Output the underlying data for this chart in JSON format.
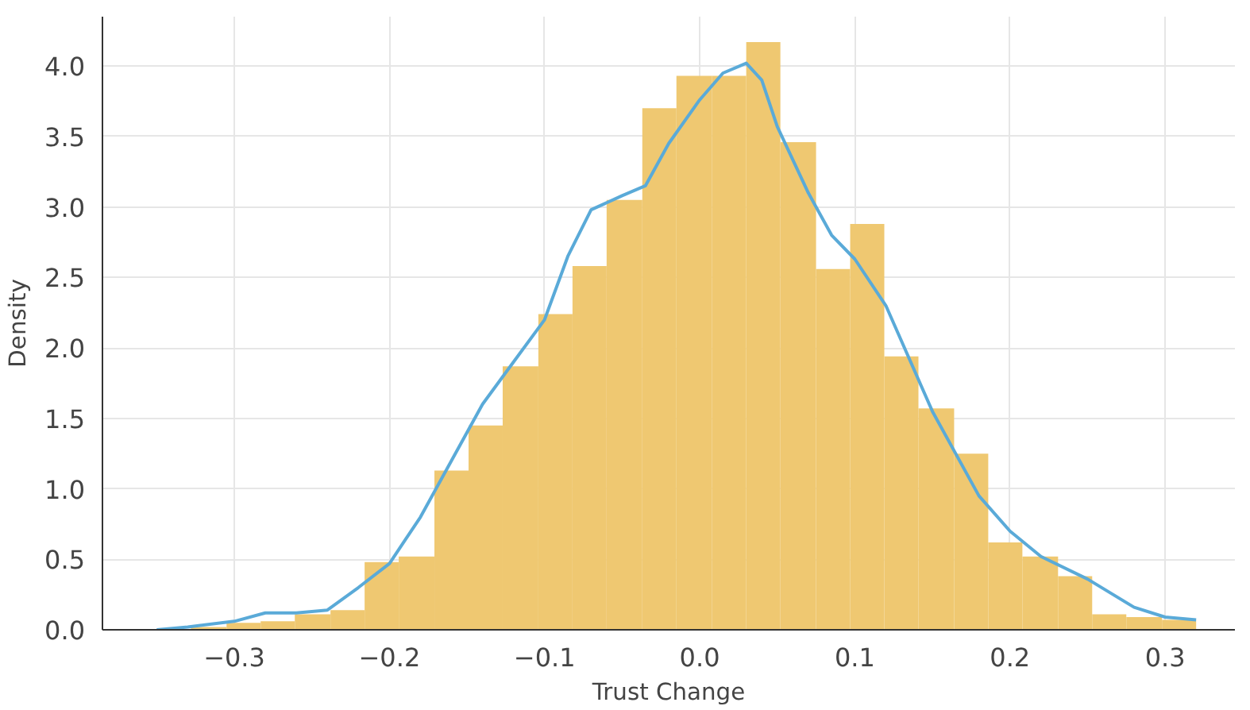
{
  "chart_data": {
    "type": "histogram",
    "xlabel": "Trust Change",
    "ylabel": "Density",
    "bins": [
      -0.328,
      -0.305,
      -0.283,
      -0.261,
      -0.238,
      -0.216,
      -0.194,
      -0.171,
      -0.149,
      -0.127,
      -0.104,
      -0.082,
      -0.06,
      -0.037,
      -0.015,
      0.008,
      0.03,
      0.052,
      0.075,
      0.097,
      0.119,
      0.141,
      0.164,
      0.186,
      0.208,
      0.231,
      0.253,
      0.275,
      0.298,
      0.32
    ],
    "values": [
      0.02,
      0.05,
      0.06,
      0.11,
      0.14,
      0.48,
      0.52,
      1.13,
      1.45,
      1.87,
      2.24,
      2.58,
      3.05,
      3.7,
      3.93,
      3.93,
      4.17,
      3.46,
      2.56,
      2.88,
      1.94,
      1.57,
      1.25,
      0.62,
      0.52,
      0.38,
      0.11,
      0.09,
      0.07
    ],
    "color": "#efc871",
    "series": [
      {
        "type": "line",
        "color": "#5aaad8",
        "x": [
          -0.35,
          -0.33,
          -0.3,
          -0.28,
          -0.26,
          -0.24,
          -0.22,
          -0.2,
          -0.18,
          -0.16,
          -0.14,
          -0.12,
          -0.1,
          -0.085,
          -0.07,
          -0.05,
          -0.035,
          -0.02,
          0.0,
          0.015,
          0.03,
          0.04,
          0.05,
          0.07,
          0.085,
          0.1,
          0.12,
          0.15,
          0.18,
          0.2,
          0.22,
          0.25,
          0.28,
          0.3,
          0.32
        ],
        "values": [
          0.0,
          0.02,
          0.06,
          0.12,
          0.12,
          0.14,
          0.3,
          0.47,
          0.8,
          1.2,
          1.6,
          1.9,
          2.2,
          2.65,
          2.98,
          3.08,
          3.15,
          3.45,
          3.76,
          3.95,
          4.02,
          3.9,
          3.57,
          3.1,
          2.8,
          2.63,
          2.3,
          1.55,
          0.95,
          0.7,
          0.52,
          0.36,
          0.16,
          0.09,
          0.07
        ]
      }
    ],
    "xlim": [
      -0.385,
      0.345
    ],
    "ylim": [
      0,
      4.35
    ],
    "xticks": [
      {
        "value": -0.3,
        "label": "−0.3"
      },
      {
        "value": -0.2,
        "label": "−0.2"
      },
      {
        "value": -0.1,
        "label": "−0.1"
      },
      {
        "value": 0.0,
        "label": "0.0"
      },
      {
        "value": 0.1,
        "label": "0.1"
      },
      {
        "value": 0.2,
        "label": "0.2"
      },
      {
        "value": 0.3,
        "label": "0.3"
      }
    ],
    "yticks": [
      {
        "value": 0,
        "label": "0.0"
      },
      {
        "value": 0.5,
        "label": "0.5"
      },
      {
        "value": 1,
        "label": "1.0"
      },
      {
        "value": 1.5,
        "label": "1.5"
      },
      {
        "value": 2,
        "label": "2.0"
      },
      {
        "value": 2.5,
        "label": "2.5"
      },
      {
        "value": 3,
        "label": "3.0"
      },
      {
        "value": 3.5,
        "label": "3.5"
      },
      {
        "value": 4,
        "label": "4.0"
      }
    ],
    "grid": true
  }
}
